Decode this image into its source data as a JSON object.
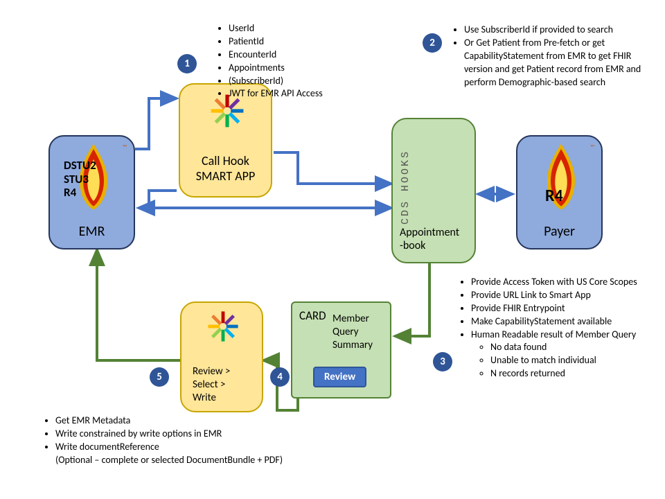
{
  "badges": {
    "b1": "1",
    "b2": "2",
    "b3": "3",
    "b4": "4",
    "b5": "5"
  },
  "nodes": {
    "emr": {
      "title": "EMR",
      "versions": [
        "DSTU2",
        "STU3",
        "R4"
      ]
    },
    "smart_app": {
      "line1": "Call Hook",
      "line2": "SMART APP"
    },
    "appointment": {
      "line1": "Appointment",
      "line2": "-book",
      "cds_label": "CDS HOOKS"
    },
    "payer": {
      "title": "Payer",
      "version": "R4"
    },
    "card": {
      "title": "CARD",
      "sub1": "Member",
      "sub2": "Query",
      "sub3": "Summary",
      "button": "Review"
    },
    "review": {
      "line1": "Review >",
      "line2": "Select >",
      "line3": "Write"
    }
  },
  "bullets": {
    "one": [
      "UserId",
      "PatientId",
      "EncounterId",
      "Appointments",
      "(SubscriberId)",
      "JWT for EMR API Access"
    ],
    "two": [
      "Use SubscriberId if provided to search",
      "Or Get Patient from Pre-fetch or get CapabilityStatement from EMR to get FHIR version and get Patient record from EMR and perform Demographic-based search"
    ],
    "three_main": [
      "Provide Access Token with US Core Scopes",
      "Provide URL Link to Smart App",
      "Provide FHIR Entrypoint",
      "Make CapabilityStatement available",
      "Human Readable result of Member Query"
    ],
    "three_sub": [
      "No data found",
      "Unable to match individual",
      "N records returned"
    ],
    "five": [
      "Get EMR Metadata",
      "Write constrained by write options in EMR",
      "Write documentReference",
      "(Optional – complete or selected DocumentBundle + PDF)"
    ]
  },
  "colors": {
    "blue_fill": "#8faadc",
    "blue_border": "#24355b",
    "yellow_fill": "#ffe699",
    "green_fill": "#c5e0b4",
    "badge_fill": "#2f5597",
    "arrow_blue": "#4472c4",
    "arrow_green": "#548235"
  }
}
